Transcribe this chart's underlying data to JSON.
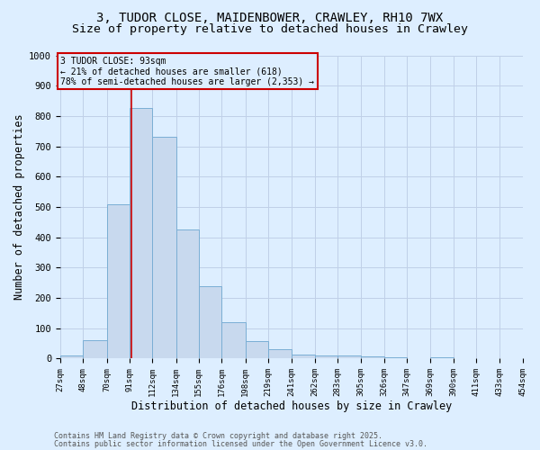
{
  "title_line1": "3, TUDOR CLOSE, MAIDENBOWER, CRAWLEY, RH10 7WX",
  "title_line2": "Size of property relative to detached houses in Crawley",
  "xlabel": "Distribution of detached houses by size in Crawley",
  "ylabel": "Number of detached properties",
  "bin_edges": [
    27,
    48,
    70,
    91,
    112,
    134,
    155,
    176,
    198,
    219,
    241,
    262,
    283,
    305,
    326,
    347,
    369,
    390,
    411,
    433,
    454
  ],
  "bar_heights": [
    10,
    60,
    510,
    825,
    730,
    425,
    240,
    120,
    57,
    32,
    13,
    10,
    10,
    7,
    5,
    0,
    5,
    0,
    0,
    0
  ],
  "bar_color": "#c8d9ee",
  "bar_edge_color": "#7aaed4",
  "property_line_x": 93,
  "property_line_color": "#cc0000",
  "annotation_text": "3 TUDOR CLOSE: 93sqm\n← 21% of detached houses are smaller (618)\n78% of semi-detached houses are larger (2,353) →",
  "annotation_box_color": "#cc0000",
  "annotation_bg_color": "#ddeeff",
  "ylim": [
    0,
    1000
  ],
  "yticks": [
    0,
    100,
    200,
    300,
    400,
    500,
    600,
    700,
    800,
    900,
    1000
  ],
  "grid_color": "#c0d0e8",
  "bg_color": "#ddeeff",
  "footer_line1": "Contains HM Land Registry data © Crown copyright and database right 2025.",
  "footer_line2": "Contains public sector information licensed under the Open Government Licence v3.0.",
  "title_fontsize": 10,
  "subtitle_fontsize": 9.5
}
